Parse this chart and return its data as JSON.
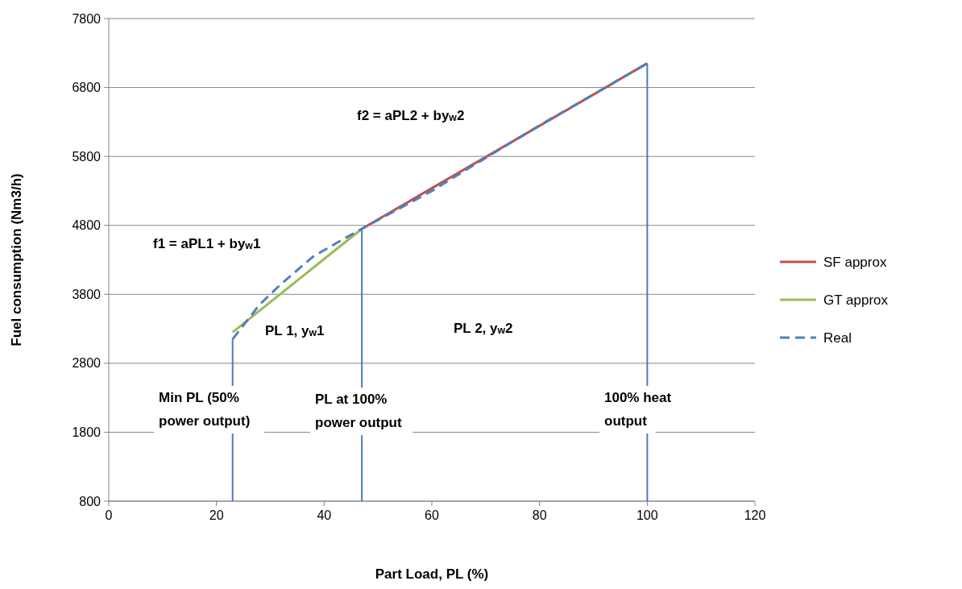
{
  "chart_data": {
    "type": "line",
    "xlabel": "Part Load, PL (%)",
    "ylabel": "Fuel consumption  (Nm3/h)",
    "xlim": [
      0,
      120
    ],
    "xticks": [
      0,
      20,
      40,
      60,
      80,
      100,
      120
    ],
    "ylim": [
      800,
      7800
    ],
    "yticks": [
      800,
      1800,
      2800,
      3800,
      4800,
      5800,
      6800,
      7800
    ],
    "grid": "y",
    "legend": "right",
    "line_style": "solid",
    "marker": "none",
    "series": [
      {
        "name": "SF approx",
        "color": "#c0504d",
        "x": [
          47,
          100
        ],
        "values": [
          4750,
          7150
        ]
      },
      {
        "name": "GT approx",
        "color": "#9bbb59",
        "x": [
          23,
          47
        ],
        "values": [
          3250,
          4750
        ]
      },
      {
        "name": "Real",
        "color": "#4f81bd",
        "line_style": "dashed",
        "x": [
          23,
          25,
          28,
          32,
          38,
          44,
          47,
          60,
          70,
          80,
          90,
          100
        ],
        "values": [
          3150,
          3350,
          3650,
          3950,
          4350,
          4620,
          4750,
          5300,
          5780,
          6250,
          6700,
          7150
        ]
      },
      {
        "color": "#4a7ebb",
        "x": [
          23,
          23
        ],
        "values": [
          800,
          3150
        ]
      },
      {
        "color": "#4a7ebb",
        "x": [
          47,
          47
        ],
        "values": [
          800,
          4750
        ]
      },
      {
        "color": "#4a7ebb",
        "x": [
          100,
          100
        ],
        "values": [
          800,
          7150
        ]
      }
    ],
    "annotations": [
      "f1 = aPL1 + by$_{w}$1",
      "f2 = aPL2 + by$_{w}$2",
      "PL 1, y$_{w}$1",
      "PL 2, y$_{w}$2",
      "Min PL (50%",
      "power output)",
      "PL at 100%",
      "power output",
      "100% heat",
      "output"
    ]
  }
}
